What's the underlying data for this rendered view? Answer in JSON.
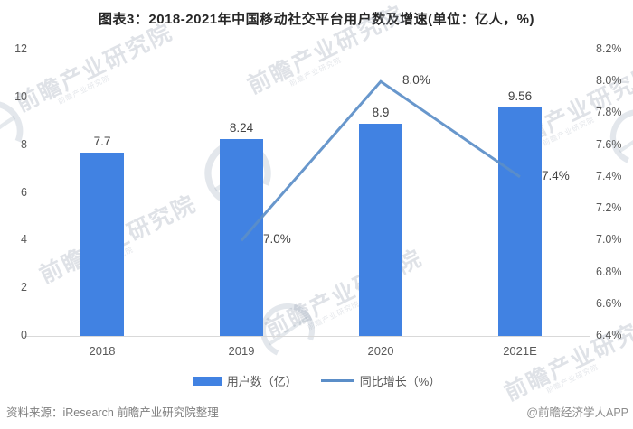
{
  "title": "图表3：2018-2021年中国移动社交平台用户数及增速(单位：亿人，%)",
  "chart_data": {
    "type": "bar",
    "subtype": "bar+line combo, dual axis",
    "categories": [
      "2018",
      "2019",
      "2020",
      "2021E"
    ],
    "series": [
      {
        "name": "用户数（亿）",
        "type": "bar",
        "axis": "left",
        "values": [
          7.7,
          8.24,
          8.9,
          9.56
        ],
        "labels": [
          "7.7",
          "8.24",
          "8.9",
          "9.56"
        ]
      },
      {
        "name": "同比增长（%）",
        "type": "line",
        "axis": "right",
        "values": [
          null,
          7.0,
          8.0,
          7.4
        ],
        "labels": [
          "",
          "7.0%",
          "8.0%",
          "7.4%"
        ]
      }
    ],
    "left_axis": {
      "min": 0,
      "max": 12,
      "tick_values": [
        12,
        10,
        8,
        6,
        4,
        2,
        0
      ],
      "tick_labels": [
        "12",
        "10",
        "8",
        "6",
        "4",
        "2",
        "0"
      ]
    },
    "right_axis": {
      "min": 6.4,
      "max": 8.2,
      "tick_values": [
        8.2,
        8.0,
        7.8,
        7.6,
        7.4,
        7.2,
        7.0,
        6.8,
        6.6,
        6.4
      ],
      "tick_labels": [
        "8.2%",
        "8.0%",
        "7.8%",
        "7.6%",
        "7.4%",
        "7.2%",
        "7.0%",
        "6.8%",
        "6.6%",
        "6.4%"
      ]
    },
    "grid": false,
    "legend_position": "bottom"
  },
  "legend": {
    "bar_label": "用户数（亿）",
    "line_label": "同比增长（%）"
  },
  "footer": {
    "source": "资料来源：iResearch 前瞻产业研究院整理",
    "credit": "@前瞻经济学人APP"
  },
  "watermark": {
    "text": "前瞻产业研究院"
  },
  "colors": {
    "bar": "#4182e2",
    "line": "#5b8ec8",
    "axis_line": "#d9d9d9",
    "title_text": "#262626",
    "tick_text": "#595959",
    "data_label_text": "#404040",
    "footer_text": "#808080",
    "watermark": "#93a3b5"
  }
}
